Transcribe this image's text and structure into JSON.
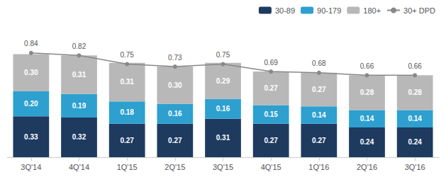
{
  "chart_data": {
    "type": "bar",
    "stacked": true,
    "categories": [
      "3Q'14",
      "4Q'14",
      "1Q'15",
      "2Q'15",
      "3Q'15",
      "4Q'15",
      "1Q'16",
      "2Q'16",
      "3Q'16"
    ],
    "series": [
      {
        "name": "30-89",
        "type": "bar",
        "color": "#1e3a5f",
        "values": [
          0.33,
          0.32,
          0.27,
          0.27,
          0.31,
          0.27,
          0.27,
          0.24,
          0.24
        ]
      },
      {
        "name": "90-179",
        "type": "bar",
        "color": "#2da0d0",
        "values": [
          0.2,
          0.19,
          0.18,
          0.16,
          0.16,
          0.15,
          0.14,
          0.14,
          0.14
        ],
        "value_labels": [
          "0.20",
          "0.19",
          "0.18",
          "0.16",
          "0.16",
          "0.15",
          "0.14",
          "0.14",
          "0.14"
        ]
      },
      {
        "name": "180+",
        "type": "bar",
        "color": "#b8b8b8",
        "values": [
          0.3,
          0.31,
          0.31,
          0.3,
          0.29,
          0.27,
          0.27,
          0.28,
          0.28
        ],
        "value_labels": [
          "0.30",
          "0.31",
          "0.31",
          "0.30",
          "0.29",
          "0.27",
          "0.27",
          "0.28",
          "0.28"
        ]
      },
      {
        "name": "30+ DPD",
        "type": "line",
        "color": "#888888",
        "marker": "circle",
        "stacked": false,
        "values": [
          0.84,
          0.82,
          0.75,
          0.73,
          0.75,
          0.69,
          0.68,
          0.66,
          0.66
        ]
      }
    ],
    "ylim": [
      0,
      1.05
    ],
    "tick_labels": "x",
    "grid": false,
    "legend": "upper right",
    "data_labels": true
  }
}
